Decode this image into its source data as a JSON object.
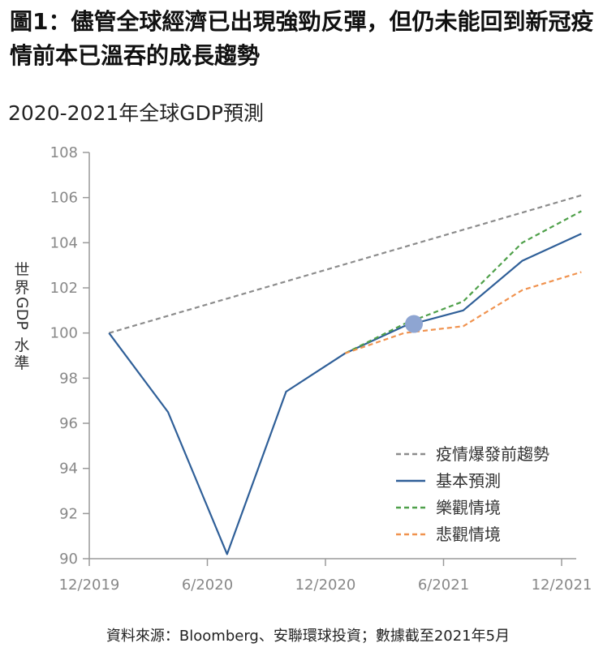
{
  "title": "圖1：儘管全球經濟已出現強勁反彈，但仍未能回到新冠疫情前本已溫吞的成長趨勢",
  "source": "資料來源：Bloomberg、安聯環球投資；數據截至2021年5月",
  "chart_data": {
    "type": "line",
    "subtitle": "2020-2021年全球GDP預測",
    "ylabel": "世界GDP 水準",
    "ylim": [
      90,
      108
    ],
    "yticks": [
      "90",
      "92",
      "94",
      "96",
      "98",
      "100",
      "102",
      "104",
      "106",
      "108"
    ],
    "xticks": [
      "12/2019",
      "6/2020",
      "12/2020",
      "6/2021",
      "12/2021"
    ],
    "grid": false,
    "legend_position": "bottom-right",
    "marker": {
      "x": "Apr 2021",
      "y": 100.4
    },
    "series": [
      {
        "name": "疫情爆發前趨勢",
        "color": "#8c8c8c",
        "dash": true,
        "x": [
          "Jan 2020",
          "Jan 2022"
        ],
        "y": [
          100.0,
          106.1
        ]
      },
      {
        "name": "基本預測",
        "color": "#2f5f98",
        "dash": false,
        "x": [
          "Jan 2020",
          "Apr 2020",
          "Jul 2020",
          "Oct 2020",
          "Jan 2021",
          "Apr 2021",
          "Jul 2021",
          "Oct 2021",
          "Jan 2022"
        ],
        "y": [
          100.0,
          96.5,
          90.2,
          97.4,
          99.1,
          100.3,
          101.0,
          103.2,
          104.4
        ]
      },
      {
        "name": "樂觀情境",
        "color": "#4fa04a",
        "dash": true,
        "x": [
          "Jan 2021",
          "Apr 2021",
          "Jul 2021",
          "Oct 2021",
          "Jan 2022"
        ],
        "y": [
          99.1,
          100.4,
          101.4,
          104.0,
          105.4
        ]
      },
      {
        "name": "悲觀情境",
        "color": "#f0924e",
        "dash": true,
        "x": [
          "Jan 2021",
          "Apr 2021",
          "Jul 2021",
          "Oct 2021",
          "Jan 2022"
        ],
        "y": [
          99.1,
          100.0,
          100.3,
          101.9,
          102.7
        ]
      }
    ]
  }
}
